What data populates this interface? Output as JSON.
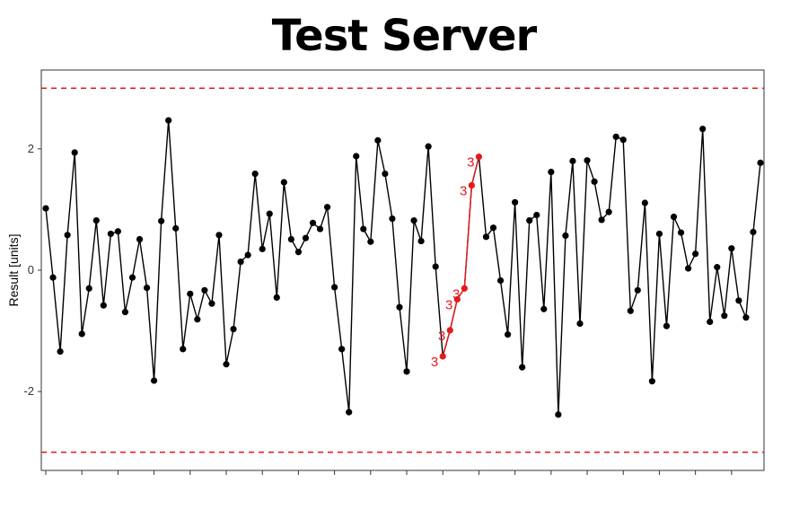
{
  "chart_data": {
    "type": "line",
    "title": "Test Server",
    "ylabel": "Result [units]",
    "xlabel": "",
    "xlim": [
      1,
      100
    ],
    "ylim": [
      -3.3,
      3.3
    ],
    "yticks": [
      -2,
      0,
      2
    ],
    "ytick_labels": [
      "-2",
      "0",
      "2"
    ],
    "control_limits": {
      "upper": 3,
      "lower": -3,
      "color": "#e41a1c",
      "style": "dashed"
    },
    "grid": false,
    "legend": "none",
    "line_color": "#000000",
    "point_color": "#000000",
    "highlight_color": "#e41a1c",
    "series": [
      {
        "values": [
          1.02,
          -0.12,
          -1.34,
          0.58,
          1.94,
          -1.05,
          -0.3,
          0.82,
          -0.58,
          0.6,
          0.64,
          -0.69,
          -0.12,
          0.51,
          -0.29,
          -1.82,
          0.81,
          2.47,
          0.69,
          -1.3,
          -0.39,
          -0.81,
          -0.33,
          -0.55,
          0.58,
          -1.55,
          -0.97,
          0.14,
          0.25,
          1.59,
          0.35,
          0.93,
          -0.45,
          1.45,
          0.51,
          0.3,
          0.53,
          0.78,
          0.68,
          1.04,
          -0.28,
          -1.3,
          -2.34,
          1.88,
          0.68,
          0.47,
          2.14,
          1.59,
          0.85,
          -0.61,
          -1.67,
          0.82,
          0.48,
          2.04,
          0.06,
          -1.42,
          -0.99,
          -0.48,
          -0.3,
          1.4,
          1.87,
          0.55,
          0.7,
          -0.17,
          -1.06,
          1.12,
          -1.6,
          0.82,
          0.91,
          -0.64,
          1.62,
          -2.38,
          0.57,
          1.8,
          -0.88,
          1.81,
          1.46,
          0.83,
          0.96,
          2.2,
          2.15,
          -0.67,
          -0.33,
          1.11,
          -1.83,
          0.6,
          -0.92,
          0.88,
          0.62,
          0.03,
          0.27,
          2.33,
          -0.85,
          0.05,
          -0.75,
          0.36,
          -0.5,
          -0.78,
          0.63,
          1.77
        ]
      }
    ],
    "flagged_points": [
      {
        "index": 56,
        "label": "3"
      },
      {
        "index": 57,
        "label": "3"
      },
      {
        "index": 58,
        "label": "3"
      },
      {
        "index": 59,
        "label": "3"
      },
      {
        "index": 60,
        "label": "3"
      },
      {
        "index": 61,
        "label": "3"
      }
    ]
  }
}
